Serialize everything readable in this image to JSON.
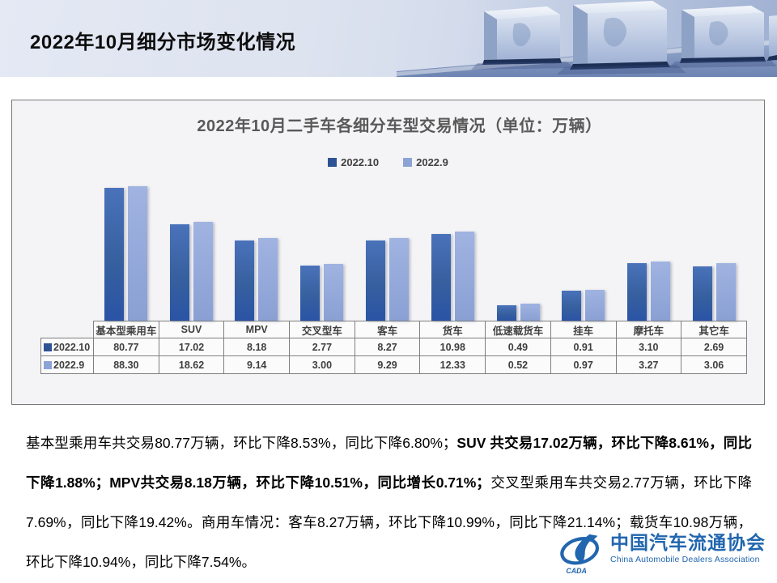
{
  "header": {
    "title": "2022年10月细分市场变化情况"
  },
  "chart_data": {
    "type": "bar",
    "title": "2022年10月二手车各细分车型交易情况（单位：万辆）",
    "unit": "万辆",
    "categories": [
      "基本型乘用车",
      "SUV",
      "MPV",
      "交叉型车",
      "客车",
      "货车",
      "低速载货车",
      "挂车",
      "摩托车",
      "其它车"
    ],
    "series": [
      {
        "name": "2022.10",
        "color": "#2E5394",
        "values": [
          80.77,
          17.02,
          8.18,
          2.77,
          8.27,
          10.98,
          0.49,
          0.91,
          3.1,
          2.69
        ]
      },
      {
        "name": "2022.9",
        "color": "#8DA3D6",
        "values": [
          88.3,
          18.62,
          9.14,
          3.0,
          9.29,
          12.33,
          0.52,
          0.97,
          3.27,
          3.06
        ]
      }
    ],
    "scale": "log",
    "baseline_value": 0.25,
    "legend_position": "top",
    "show_data_table": true,
    "value_decimals": 2
  },
  "analysis": {
    "segments": [
      {
        "bold": false,
        "text": "基本型乘用车共交易80.77万辆，环比下降8.53%，同比下降6.80%；"
      },
      {
        "bold": true,
        "text": "SUV 共交易17.02万辆，环比下降8.61%，同比下降1.88%；MPV共交易8.18万辆，环比下降10.51%，同比增长0.71%；"
      },
      {
        "bold": false,
        "text": "交叉型乘用车共交易2.77万辆，环比下降7.69%，同比下降19.42%。商用车情况：客车8.27万辆，环比下降10.99%，同比下降21.14%；载货车10.98万辆，环比下降10.94%，同比下降7.54%。"
      }
    ]
  },
  "logo": {
    "acronym": "CADA",
    "name_cn": "中国汽车流通协会",
    "name_en": "China Automobile Dealers Association",
    "color": "#2166AE"
  }
}
